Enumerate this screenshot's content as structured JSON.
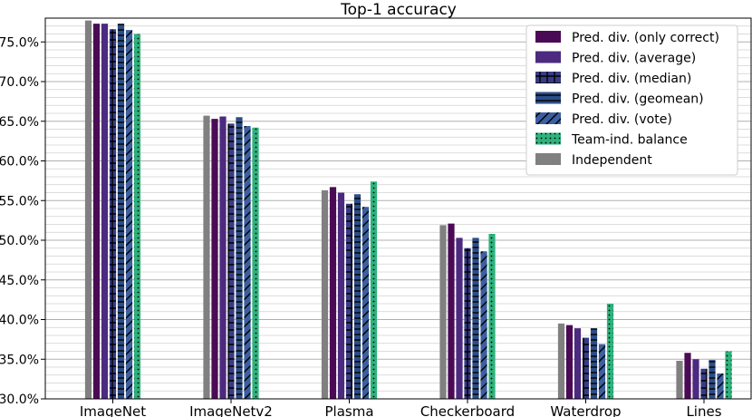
{
  "chart_data": {
    "type": "bar",
    "title": "Top-1 accuracy",
    "xlabel": "",
    "ylabel": "",
    "ylim": [
      30,
      78
    ],
    "y_tick_labels": [
      "30.0%",
      "35.0%",
      "40.0%",
      "45.0%",
      "50.0%",
      "55.0%",
      "60.0%",
      "65.0%",
      "70.0%",
      "75.0%"
    ],
    "y_tick_values": [
      30,
      35,
      40,
      45,
      50,
      55,
      60,
      65,
      70,
      75
    ],
    "grid": true,
    "legend_placement": "top-right",
    "categories": [
      "ImageNet",
      "ImageNetv2",
      "Plasma",
      "Checkerboard",
      "Waterdrop",
      "Lines"
    ],
    "series": [
      {
        "name": "Independent",
        "color": "#808080",
        "pattern": "none",
        "values": [
          77.7,
          65.7,
          56.3,
          51.9,
          39.5,
          34.8
        ]
      },
      {
        "name": "Pred. div. (only correct)",
        "color": "#4b0a55",
        "pattern": "none",
        "values": [
          77.3,
          65.3,
          56.7,
          52.1,
          39.3,
          35.8
        ]
      },
      {
        "name": "Pred. div. (average)",
        "color": "#4b2a7f",
        "pattern": "none",
        "values": [
          77.3,
          65.6,
          56.0,
          50.3,
          38.9,
          35.0
        ]
      },
      {
        "name": "Pred. div. (median)",
        "color": "#383c85",
        "pattern": "plus",
        "values": [
          76.6,
          64.7,
          54.6,
          49.0,
          37.7,
          33.8
        ]
      },
      {
        "name": "Pred. div. (geomean)",
        "color": "#2c4d87",
        "pattern": "hline",
        "values": [
          77.3,
          65.5,
          55.8,
          50.3,
          38.9,
          34.9
        ]
      },
      {
        "name": "Pred. div. (vote)",
        "color": "#3b5fa0",
        "pattern": "slash",
        "values": [
          76.5,
          64.4,
          54.2,
          48.6,
          36.9,
          33.2
        ]
      },
      {
        "name": "Team-ind. balance",
        "color": "#2fb27d",
        "pattern": "dots",
        "values": [
          76.0,
          64.2,
          57.4,
          50.8,
          42.0,
          36.0
        ]
      }
    ],
    "legend_order": [
      "Pred. div. (only correct)",
      "Pred. div. (average)",
      "Pred. div. (median)",
      "Pred. div. (geomean)",
      "Pred. div. (vote)",
      "Team-ind. balance",
      "Independent"
    ]
  }
}
